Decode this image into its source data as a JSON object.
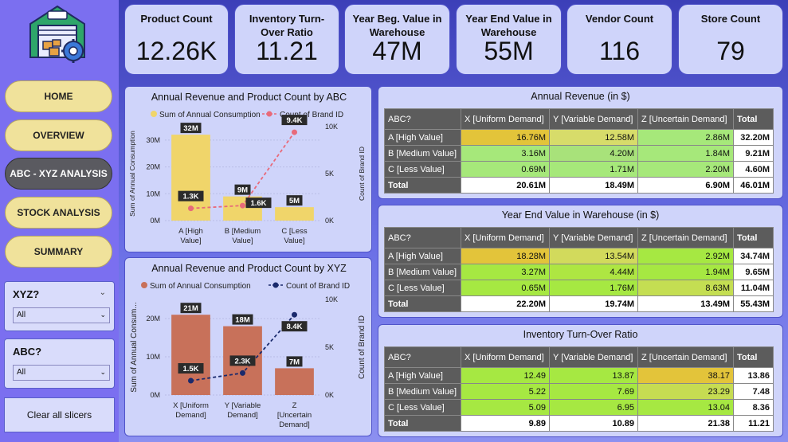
{
  "nav": {
    "home": "HOME",
    "overview": "OVERVIEW",
    "abc_xyz": "ABC - XYZ ANALYSIS",
    "stock": "STOCK ANALYSIS",
    "summary": "SUMMARY"
  },
  "slicers": {
    "xyz": {
      "title": "XYZ?",
      "value": "All"
    },
    "abc": {
      "title": "ABC?",
      "value": "All"
    },
    "clear": "Clear all slicers"
  },
  "kpis": [
    {
      "title": "Product Count",
      "value": "12.26K"
    },
    {
      "title": "Inventory Turn-Over Ratio",
      "value": "11.21"
    },
    {
      "title": "Year Beg. Value in Warehouse",
      "value": "47M"
    },
    {
      "title": "Year End Value in Warehouse",
      "value": "55M"
    },
    {
      "title": "Vendor Count",
      "value": "116"
    },
    {
      "title": "Store Count",
      "value": "79"
    }
  ],
  "chart_data": [
    {
      "type": "bar",
      "title": "Annual Revenue and Product Count by ABC",
      "categories": [
        "A [High Value]",
        "B [Medium Value]",
        "C [Less Value]"
      ],
      "categories_lines": [
        [
          "A [High",
          "Value]"
        ],
        [
          "B [Medium",
          "Value]"
        ],
        [
          "C [Less",
          "Value]"
        ]
      ],
      "series": [
        {
          "name": "Sum of Annual Consumption",
          "type": "bar",
          "axis": "left",
          "values": [
            32,
            9,
            5
          ],
          "labels": [
            "32M",
            "9M",
            "5M"
          ],
          "color": "#f0d56a"
        },
        {
          "name": "Count of Brand ID",
          "type": "line",
          "axis": "right",
          "values": [
            1.3,
            1.6,
            9.4
          ],
          "labels": [
            "1.3K",
            "1.6K",
            "9.4K"
          ],
          "color": "#e86a7a"
        }
      ],
      "ylabel": "Sum of Annual Consumption",
      "y2label": "Count of Brand ID",
      "ylim": [
        0,
        35
      ],
      "y2lim": [
        0,
        10
      ],
      "yticks": [
        {
          "v": 0,
          "t": "0M"
        },
        {
          "v": 10,
          "t": "10M"
        },
        {
          "v": 20,
          "t": "20M"
        },
        {
          "v": 30,
          "t": "30M"
        }
      ],
      "y2ticks": [
        {
          "v": 0,
          "t": "0K"
        },
        {
          "v": 5,
          "t": "5K"
        },
        {
          "v": 10,
          "t": "10K"
        }
      ]
    },
    {
      "type": "bar",
      "title": "Annual Revenue and Product Count by XYZ",
      "categories": [
        "X [Uniform Demand]",
        "Y [Variable Demand]",
        "Z [Uncertain Demand]"
      ],
      "categories_lines": [
        [
          "X [Uniform",
          "Demand]"
        ],
        [
          "Y [Variable",
          "Demand]"
        ],
        [
          "Z",
          "[Uncertain",
          "Demand]"
        ]
      ],
      "series": [
        {
          "name": "Sum of Annual Consumption",
          "type": "bar",
          "axis": "left",
          "values": [
            21,
            18,
            7
          ],
          "labels": [
            "21M",
            "18M",
            "7M"
          ],
          "color": "#c8715a"
        },
        {
          "name": "Count of Brand ID",
          "type": "line",
          "axis": "right",
          "values": [
            1.5,
            2.3,
            8.4
          ],
          "labels": [
            "1.5K",
            "2.3K",
            "8.4K"
          ],
          "color": "#1a2a6c"
        }
      ],
      "ylabel": "Sum of Annual Consum...",
      "y2label": "Count of Brand ID",
      "ylim": [
        0,
        25
      ],
      "y2lim": [
        0,
        10
      ],
      "yticks": [
        {
          "v": 0,
          "t": "0M"
        },
        {
          "v": 10,
          "t": "10M"
        },
        {
          "v": 20,
          "t": "20M"
        }
      ],
      "y2ticks": [
        {
          "v": 0,
          "t": "0K"
        },
        {
          "v": 5,
          "t": "5K"
        },
        {
          "v": 10,
          "t": "10K"
        }
      ]
    }
  ],
  "matrices": [
    {
      "title": "Annual Revenue (in $)",
      "columns": [
        "ABC?",
        "X [Uniform Demand]",
        "Y [Variable Demand]",
        "Z [Uncertain Demand]",
        "Total"
      ],
      "rows": [
        {
          "label": "A [High Value]",
          "cells": [
            "16.76M",
            "12.58M",
            "2.86M"
          ],
          "colors": [
            "#e3c43a",
            "#d7dc6a",
            "#a6e87a"
          ],
          "total": "32.20M"
        },
        {
          "label": "B [Medium Value]",
          "cells": [
            "3.16M",
            "4.20M",
            "1.84M"
          ],
          "colors": [
            "#a6e87a",
            "#a8e27a",
            "#a6e87a"
          ],
          "total": "9.21M"
        },
        {
          "label": "C [Less Value]",
          "cells": [
            "0.69M",
            "1.71M",
            "2.20M"
          ],
          "colors": [
            "#a6e87a",
            "#a6e87a",
            "#a6e87a"
          ],
          "total": "4.60M"
        }
      ],
      "totals": {
        "label": "Total",
        "cells": [
          "20.61M",
          "18.49M",
          "6.90M"
        ],
        "total": "46.01M"
      }
    },
    {
      "title": "Year End Value in Warehouse (in $)",
      "columns": [
        "ABC?",
        "X [Uniform Demand]",
        "Y [Variable Demand]",
        "Z [Uncertain Demand]",
        "Total"
      ],
      "rows": [
        {
          "label": "A [High Value]",
          "cells": [
            "18.28M",
            "13.54M",
            "2.92M"
          ],
          "colors": [
            "#e3c43a",
            "#d2da5c",
            "#a6e842"
          ],
          "total": "34.74M"
        },
        {
          "label": "B [Medium Value]",
          "cells": [
            "3.27M",
            "4.44M",
            "1.94M"
          ],
          "colors": [
            "#a6e842",
            "#aee642",
            "#a6e842"
          ],
          "total": "9.65M"
        },
        {
          "label": "C [Less Value]",
          "cells": [
            "0.65M",
            "1.76M",
            "8.63M"
          ],
          "colors": [
            "#a6e842",
            "#a6e842",
            "#c4de52"
          ],
          "total": "11.04M"
        }
      ],
      "totals": {
        "label": "Total",
        "cells": [
          "22.20M",
          "19.74M",
          "13.49M"
        ],
        "total": "55.43M"
      }
    },
    {
      "title": "Inventory Turn-Over Ratio",
      "columns": [
        "ABC?",
        "X [Uniform Demand]",
        "Y [Variable Demand]",
        "Z [Uncertain Demand]",
        "Total"
      ],
      "rows": [
        {
          "label": "A [High Value]",
          "cells": [
            "12.49",
            "13.87",
            "38.17"
          ],
          "colors": [
            "#a6e842",
            "#a6e842",
            "#e3c43a"
          ],
          "total": "13.86"
        },
        {
          "label": "B [Medium Value]",
          "cells": [
            "5.22",
            "7.69",
            "23.29"
          ],
          "colors": [
            "#a6e842",
            "#a6e842",
            "#c6dc52"
          ],
          "total": "7.48"
        },
        {
          "label": "C [Less Value]",
          "cells": [
            "5.09",
            "6.95",
            "13.04"
          ],
          "colors": [
            "#a6e842",
            "#a6e842",
            "#a6e842"
          ],
          "total": "8.36"
        }
      ],
      "totals": {
        "label": "Total",
        "cells": [
          "9.89",
          "10.89",
          "21.38"
        ],
        "total": "11.21"
      }
    }
  ]
}
